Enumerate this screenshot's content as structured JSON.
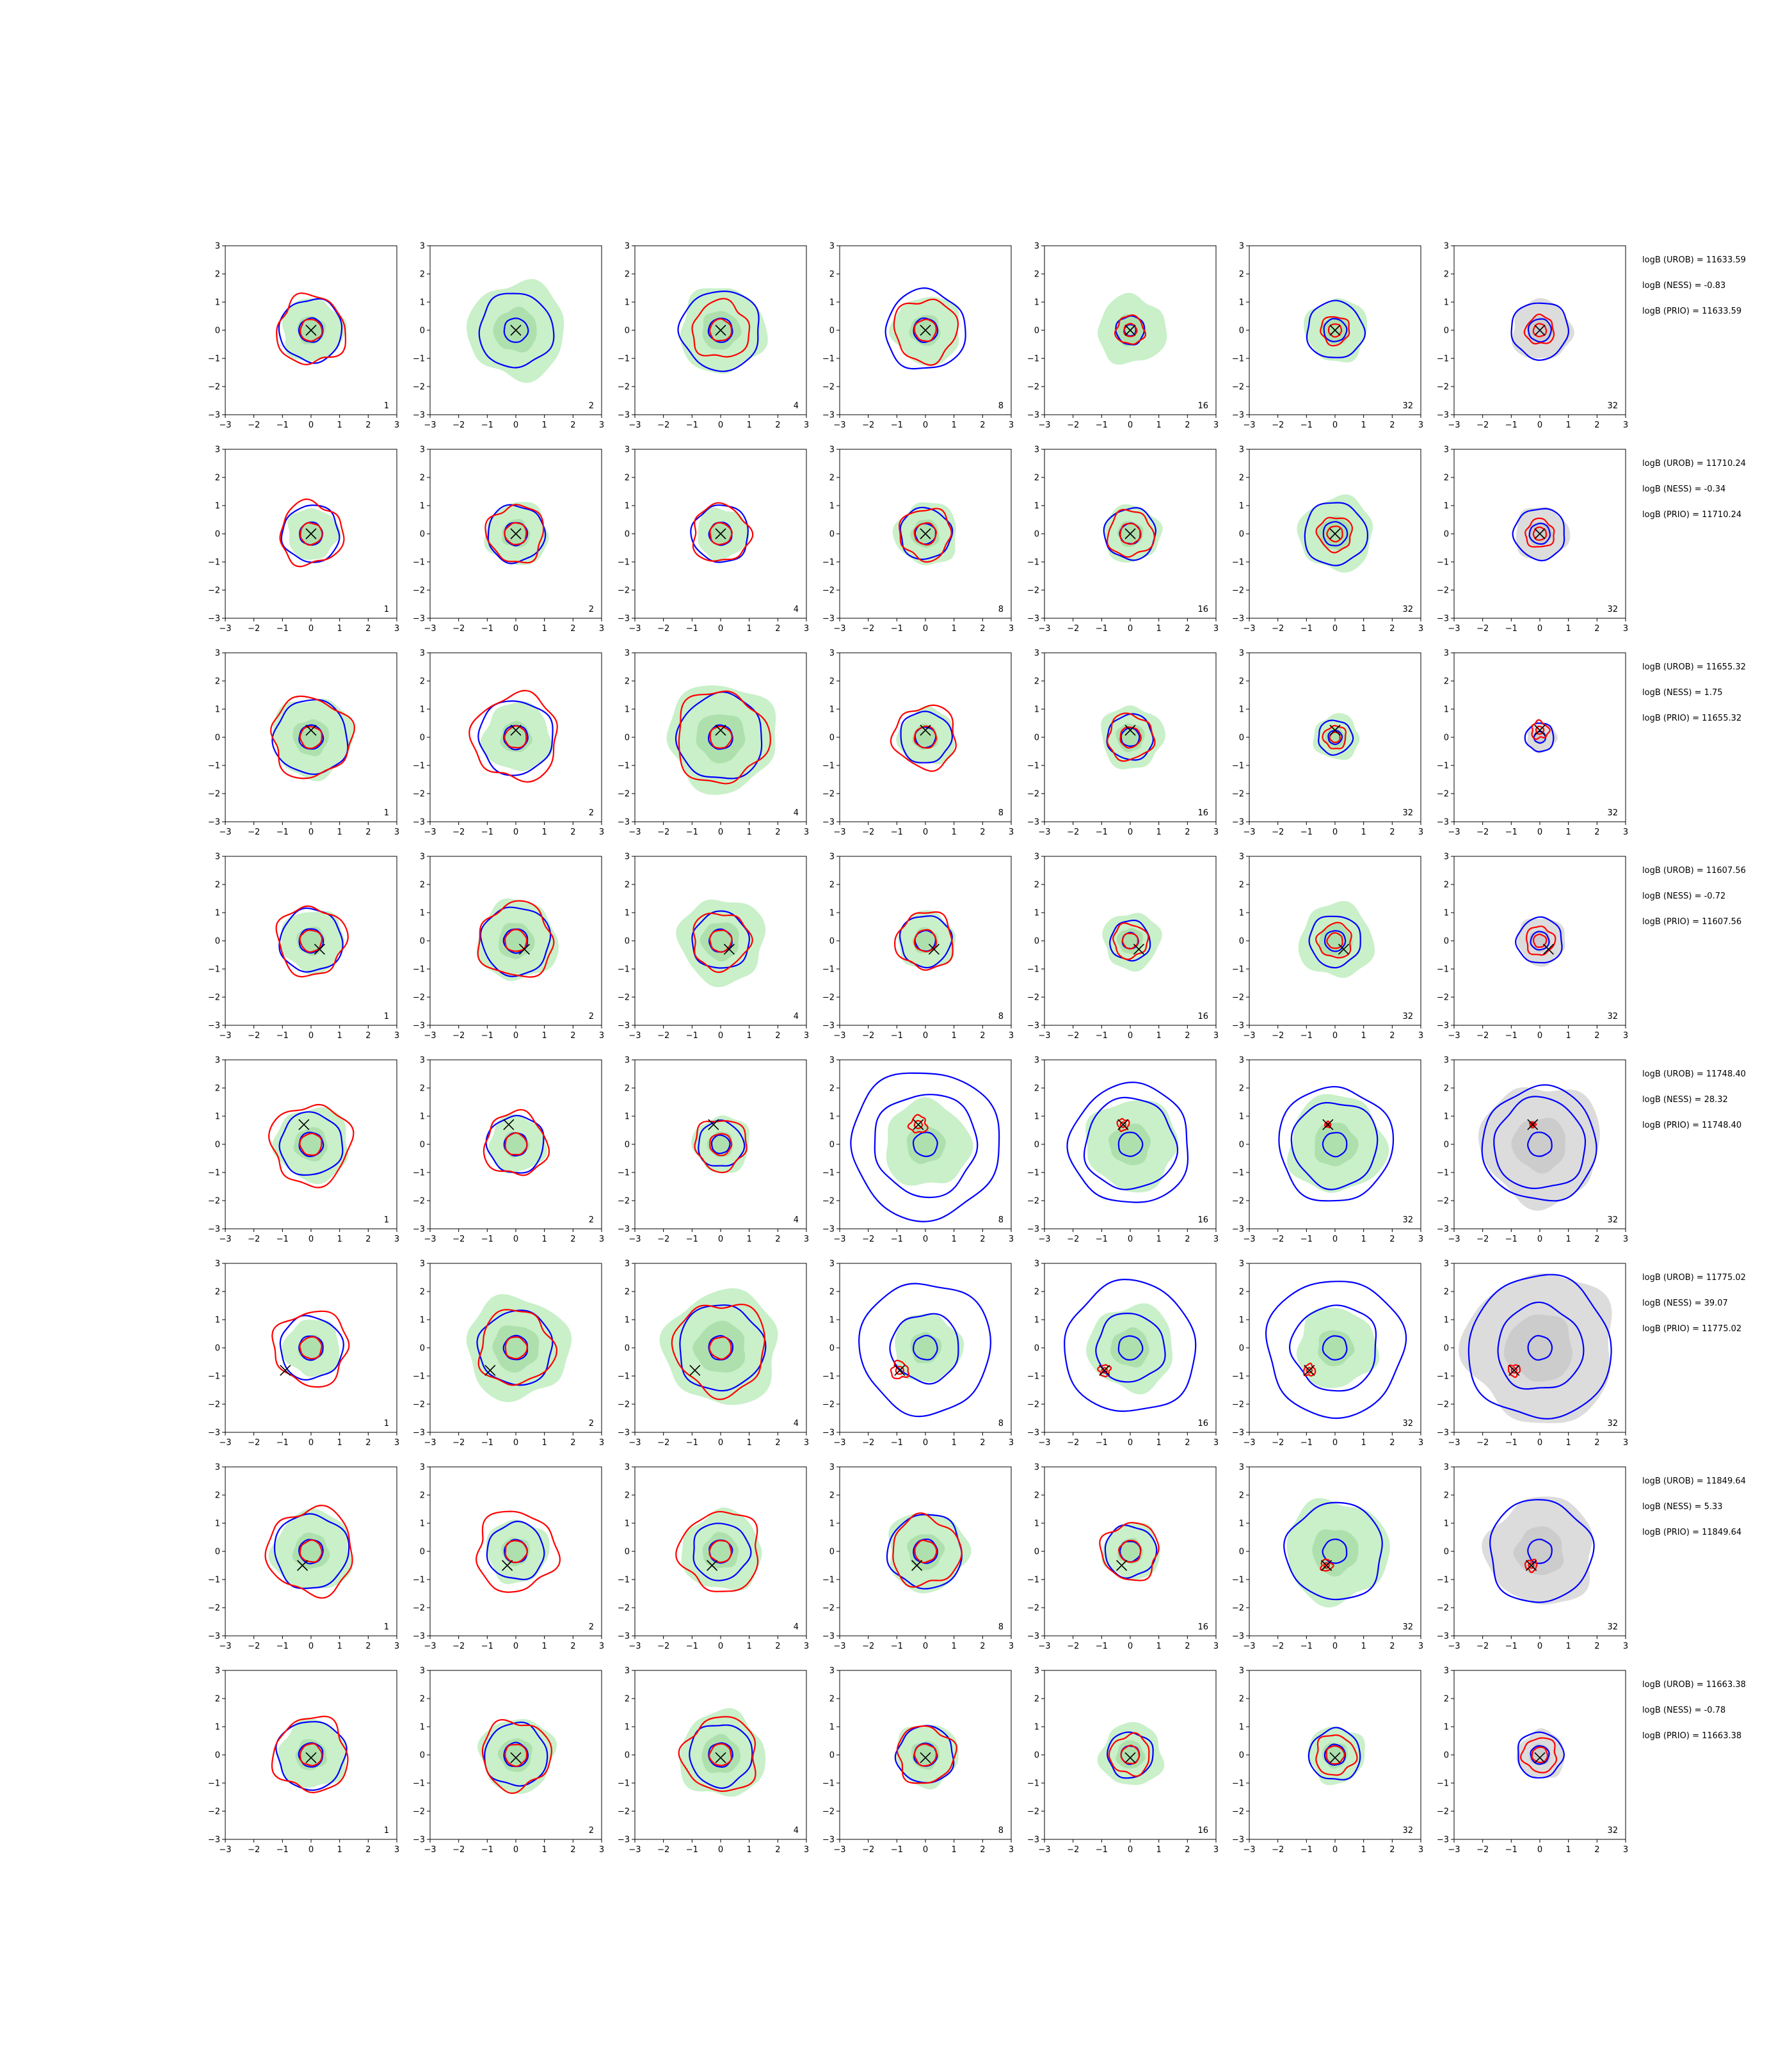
{
  "colors": {
    "likelihood_fill": "#c9f0c9",
    "likelihood_core": "#a8dca8",
    "prior_fill": "#dcdcdc",
    "prior_core": "#c8c8c8",
    "blue_contour": "#0000ff",
    "red_contour": "#ff0000",
    "truth_marker": "#000000"
  },
  "chart_data": {
    "type": "contour",
    "layout": "grid 8 rows x 7 columns",
    "xlim": [
      -3,
      3
    ],
    "ylim": [
      -3,
      3
    ],
    "xticks": [
      -3,
      -2,
      -1,
      0,
      1,
      2,
      3
    ],
    "yticks": [
      -3,
      -2,
      -1,
      0,
      1,
      2,
      3
    ],
    "column_labels": [
      "1",
      "2",
      "4",
      "8",
      "16",
      "32",
      "32"
    ],
    "rows": [
      {
        "truth": [
          0.0,
          0.0
        ],
        "annotations": [
          "logB (UROB) = 11633.59",
          "logB (NESS) = -0.83",
          "logB (PRIO) = 11633.59"
        ],
        "blue_radius": [
          1.1,
          1.3,
          1.4,
          1.4,
          0.5,
          1.0,
          1.0
        ],
        "red_radius": [
          1.2,
          0,
          1.0,
          1.1,
          0.5,
          0.5,
          0.5
        ],
        "green_radius": [
          1.1,
          1.7,
          1.5,
          1.2,
          1.2,
          1.1,
          0
        ],
        "ring_radius": [
          0,
          0,
          0,
          0,
          0,
          0,
          0
        ]
      },
      {
        "truth": [
          0.0,
          0.0
        ],
        "annotations": [
          "logB (UROB) = 11710.24",
          "logB (NESS) = -0.34",
          "logB (PRIO) = 11710.24"
        ],
        "blue_radius": [
          1.0,
          1.0,
          1.0,
          0.9,
          0.9,
          1.1,
          0.9
        ],
        "red_radius": [
          1.1,
          1.0,
          1.0,
          0.9,
          0.8,
          0.6,
          0.5
        ],
        "green_radius": [
          0.9,
          1.1,
          0.9,
          1.1,
          1.0,
          1.3,
          0
        ],
        "ring_radius": [
          0,
          0,
          0,
          0,
          0,
          0,
          0
        ]
      },
      {
        "truth": [
          0.0,
          0.25
        ],
        "annotations": [
          "logB (UROB) = 11655.32",
          "logB (NESS) = 1.75",
          "logB (PRIO) = 11655.32"
        ],
        "blue_radius": [
          1.3,
          1.3,
          1.5,
          0.9,
          0.8,
          0.6,
          0.5
        ],
        "red_radius": [
          1.4,
          1.5,
          1.6,
          1.1,
          0.8,
          0.4,
          0.3
        ],
        "green_radius": [
          1.4,
          1.2,
          1.9,
          1.0,
          1.1,
          0.8,
          0
        ],
        "ring_radius": [
          0,
          0,
          0,
          0,
          0,
          0,
          0
        ]
      },
      {
        "truth": [
          0.3,
          -0.3
        ],
        "annotations": [
          "logB (UROB) = 11607.56",
          "logB (NESS) = -0.72",
          "logB (PRIO) = 11607.56"
        ],
        "blue_radius": [
          1.1,
          1.2,
          1.0,
          0.9,
          0.7,
          0.9,
          0.8
        ],
        "red_radius": [
          1.2,
          1.3,
          1.0,
          1.0,
          0.6,
          0.6,
          0.5
        ],
        "green_radius": [
          1.1,
          1.4,
          1.5,
          1.0,
          1.0,
          1.3,
          0
        ],
        "ring_radius": [
          0,
          0,
          0,
          0,
          0,
          0,
          0
        ]
      },
      {
        "truth": [
          -0.25,
          0.7
        ],
        "annotations": [
          "logB (UROB) = 11748.40",
          "logB (NESS) = 28.32",
          "logB (PRIO) = 11748.40"
        ],
        "blue_radius": [
          1.1,
          1.0,
          0.8,
          1.8,
          1.6,
          1.5,
          1.6
        ],
        "red_radius": [
          1.4,
          1.1,
          0.9,
          0.3,
          0.2,
          0.1,
          0.1
        ],
        "green_radius": [
          1.3,
          1.0,
          1.0,
          1.5,
          1.6,
          1.7,
          0
        ],
        "ring_radius": [
          0,
          0,
          0,
          2.6,
          2.1,
          2.0,
          2.0
        ]
      },
      {
        "truth": [
          -0.9,
          -0.8
        ],
        "annotations": [
          "logB (UROB) = 11775.02",
          "logB (NESS) = 39.07",
          "logB (PRIO) = 11775.02"
        ],
        "blue_radius": [
          1.1,
          1.3,
          1.5,
          1.2,
          1.2,
          1.5,
          1.5
        ],
        "red_radius": [
          1.3,
          1.3,
          1.6,
          0.3,
          0.2,
          0.2,
          0.2
        ],
        "green_radius": [
          1.0,
          1.8,
          2.0,
          1.2,
          1.5,
          1.4,
          0
        ],
        "ring_radius": [
          0,
          0,
          0,
          2.3,
          2.3,
          2.4,
          2.5
        ]
      },
      {
        "truth": [
          -0.3,
          -0.5
        ],
        "annotations": [
          "logB (UROB) = 11849.64",
          "logB (NESS) = 5.33",
          "logB (PRIO) = 11849.64"
        ],
        "blue_radius": [
          1.3,
          1.0,
          1.0,
          1.3,
          0.9,
          1.7,
          1.8
        ],
        "red_radius": [
          1.5,
          1.4,
          1.4,
          1.2,
          1.0,
          0.2,
          0.2
        ],
        "green_radius": [
          1.4,
          1.1,
          1.4,
          1.4,
          1.0,
          1.8,
          0
        ],
        "ring_radius": [
          0,
          0,
          0,
          0,
          0,
          0,
          0
        ]
      },
      {
        "truth": [
          0.0,
          -0.1
        ],
        "annotations": [
          "logB (UROB) = 11663.38",
          "logB (NESS) = -0.78",
          "logB (PRIO) = 11663.38"
        ],
        "blue_radius": [
          1.2,
          1.1,
          1.1,
          1.0,
          0.8,
          0.9,
          0.8
        ],
        "red_radius": [
          1.3,
          1.2,
          1.3,
          1.0,
          0.7,
          0.7,
          0.6
        ],
        "green_radius": [
          1.2,
          1.3,
          1.5,
          1.1,
          1.1,
          1.0,
          0
        ],
        "ring_radius": [
          0,
          0,
          0,
          0,
          0,
          0,
          0
        ]
      }
    ]
  }
}
